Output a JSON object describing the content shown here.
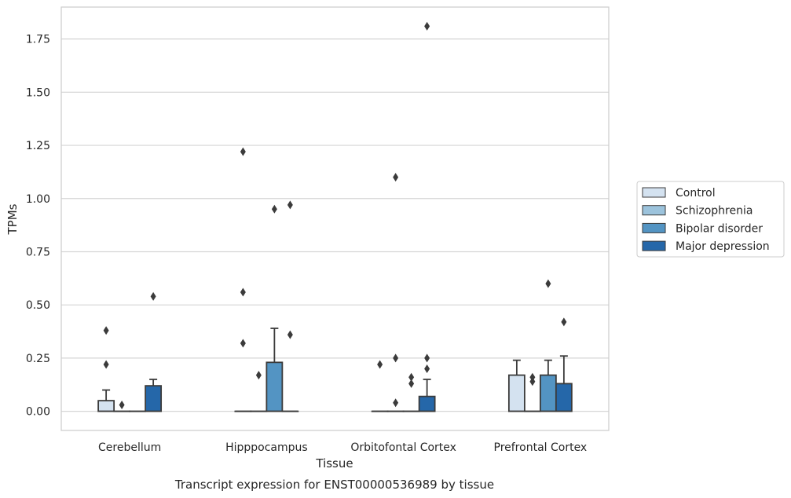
{
  "chart_data": {
    "type": "box",
    "xlabel": "Tissue",
    "ylabel": "TPMs",
    "caption": "Transcript expression for ENST00000536989 by tissue",
    "ylim": [
      -0.09,
      1.9
    ],
    "yticks": [
      "0.00",
      "0.25",
      "0.50",
      "0.75",
      "1.00",
      "1.25",
      "1.50",
      "1.75"
    ],
    "grid": "horizontal",
    "legend_position": "right",
    "categories": [
      "Cerebellum",
      "Hipppocampus",
      "Orbitofontal Cortex",
      "Prefrontal Cortex"
    ],
    "series": [
      {
        "name": "Control",
        "color": "#d4e2f0",
        "boxes": [
          {
            "q1": 0,
            "median": 0,
            "q3": 0.05,
            "whisker_low": 0,
            "whisker_high": 0.1,
            "outliers": [
              0.22,
              0.38
            ]
          },
          {
            "q1": 0,
            "median": 0,
            "q3": 0,
            "whisker_low": 0,
            "whisker_high": 0,
            "outliers": [
              0.32,
              0.56,
              1.22
            ]
          },
          {
            "q1": 0,
            "median": 0,
            "q3": 0,
            "whisker_low": 0,
            "whisker_high": 0,
            "outliers": [
              0.22
            ]
          },
          {
            "q1": 0,
            "median": 0,
            "q3": 0.17,
            "whisker_low": 0,
            "whisker_high": 0.24,
            "outliers": []
          }
        ]
      },
      {
        "name": "Schizophrenia",
        "color": "#9cc3dc",
        "boxes": [
          {
            "q1": 0,
            "median": 0,
            "q3": 0,
            "whisker_low": 0,
            "whisker_high": 0,
            "outliers": [
              0.03
            ]
          },
          {
            "q1": 0,
            "median": 0,
            "q3": 0,
            "whisker_low": 0,
            "whisker_high": 0,
            "outliers": [
              0.17
            ]
          },
          {
            "q1": 0,
            "median": 0,
            "q3": 0,
            "whisker_low": 0,
            "whisker_high": 0,
            "outliers": [
              0.04,
              0.25,
              1.1
            ]
          },
          {
            "q1": 0,
            "median": 0,
            "q3": 0,
            "whisker_low": 0,
            "whisker_high": 0,
            "outliers": [
              0.14,
              0.16
            ]
          }
        ]
      },
      {
        "name": "Bipolar disorder",
        "color": "#5394c3",
        "boxes": [
          {
            "q1": 0,
            "median": 0,
            "q3": 0,
            "whisker_low": 0,
            "whisker_high": 0,
            "outliers": []
          },
          {
            "q1": 0,
            "median": 0,
            "q3": 0.23,
            "whisker_low": 0,
            "whisker_high": 0.39,
            "outliers": [
              0.95
            ]
          },
          {
            "q1": 0,
            "median": 0,
            "q3": 0,
            "whisker_low": 0,
            "whisker_high": 0,
            "outliers": [
              0.13,
              0.16
            ]
          },
          {
            "q1": 0,
            "median": 0,
            "q3": 0.17,
            "whisker_low": 0,
            "whisker_high": 0.24,
            "outliers": [
              0.6
            ]
          }
        ]
      },
      {
        "name": "Major depression",
        "color": "#2567a9",
        "boxes": [
          {
            "q1": 0,
            "median": 0,
            "q3": 0.12,
            "whisker_low": 0,
            "whisker_high": 0.15,
            "outliers": [
              0.54
            ]
          },
          {
            "q1": 0,
            "median": 0,
            "q3": 0,
            "whisker_low": 0,
            "whisker_high": 0,
            "outliers": [
              0.36,
              0.97
            ]
          },
          {
            "q1": 0,
            "median": 0,
            "q3": 0.07,
            "whisker_low": 0,
            "whisker_high": 0.15,
            "outliers": [
              0.2,
              0.25,
              1.81
            ]
          },
          {
            "q1": 0,
            "median": 0,
            "q3": 0.13,
            "whisker_low": 0,
            "whisker_high": 0.26,
            "outliers": [
              0.42
            ]
          }
        ]
      }
    ]
  }
}
